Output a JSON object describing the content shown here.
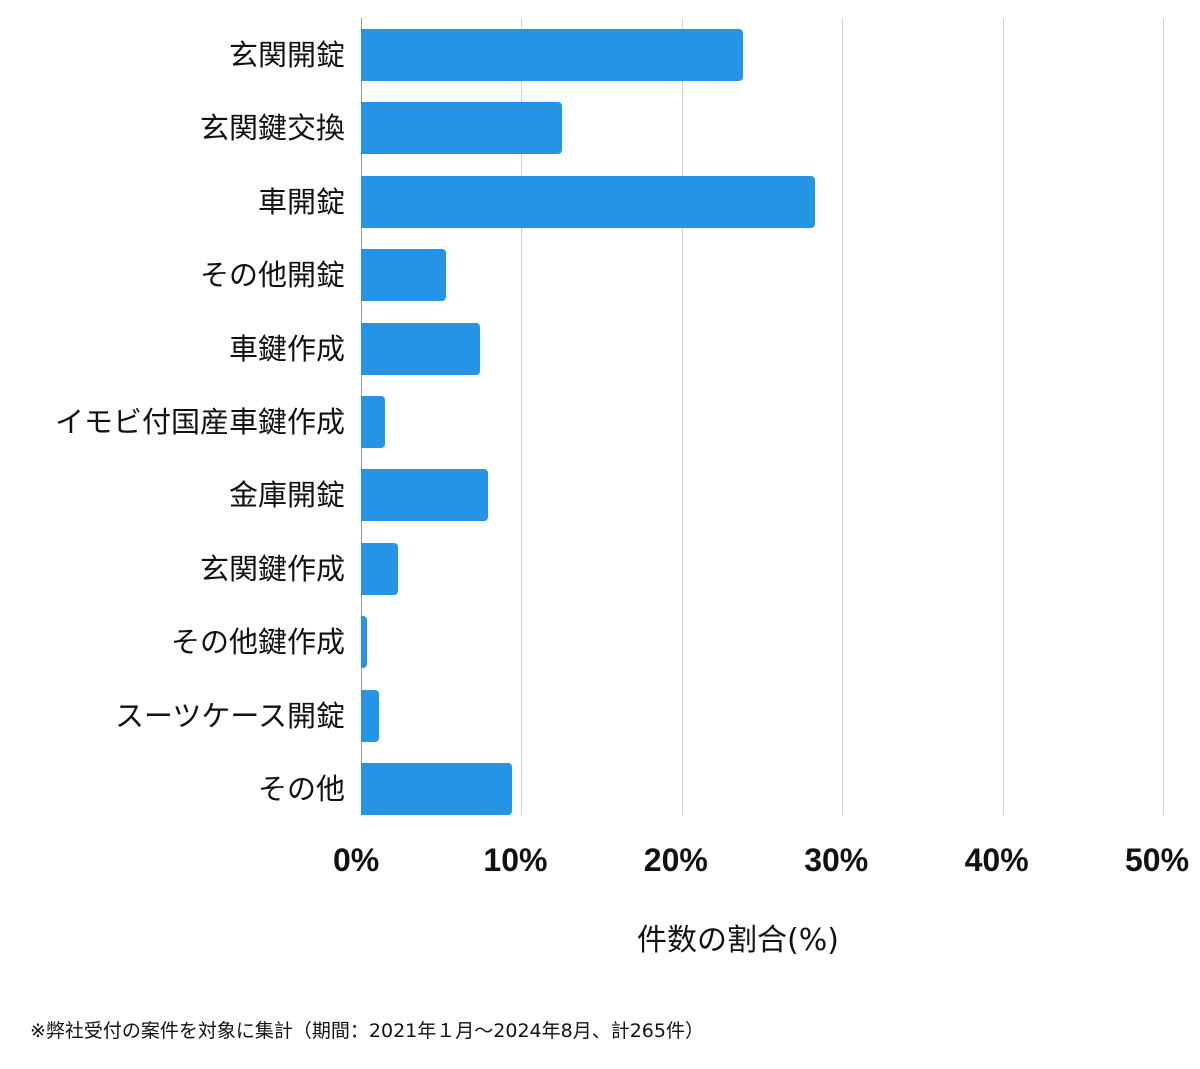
{
  "chart_data": {
    "type": "bar",
    "orientation": "horizontal",
    "title": "",
    "xlabel": "件数の割合(%)",
    "ylabel": "",
    "xlim": [
      0,
      50
    ],
    "x_ticks": [
      "0%",
      "10%",
      "20%",
      "30%",
      "40%",
      "50%"
    ],
    "grid": true,
    "legend": null,
    "bar_color": "#2694e4",
    "categories": [
      "玄関開錠",
      "玄関鍵交換",
      "車開錠",
      "その他開錠",
      "車鍵作成",
      "イモビ付国産車鍵作成",
      "金庫開錠",
      "玄関鍵作成",
      "その他鍵作成",
      "スーツケース開錠",
      "その他"
    ],
    "values": [
      23.8,
      12.5,
      28.3,
      5.3,
      7.4,
      1.5,
      7.9,
      2.3,
      0.4,
      1.1,
      9.4
    ],
    "units": "%"
  },
  "footnote": "※弊社受付の案件を対象に集計（期間：2021年１月〜2024年8月、計265件）"
}
